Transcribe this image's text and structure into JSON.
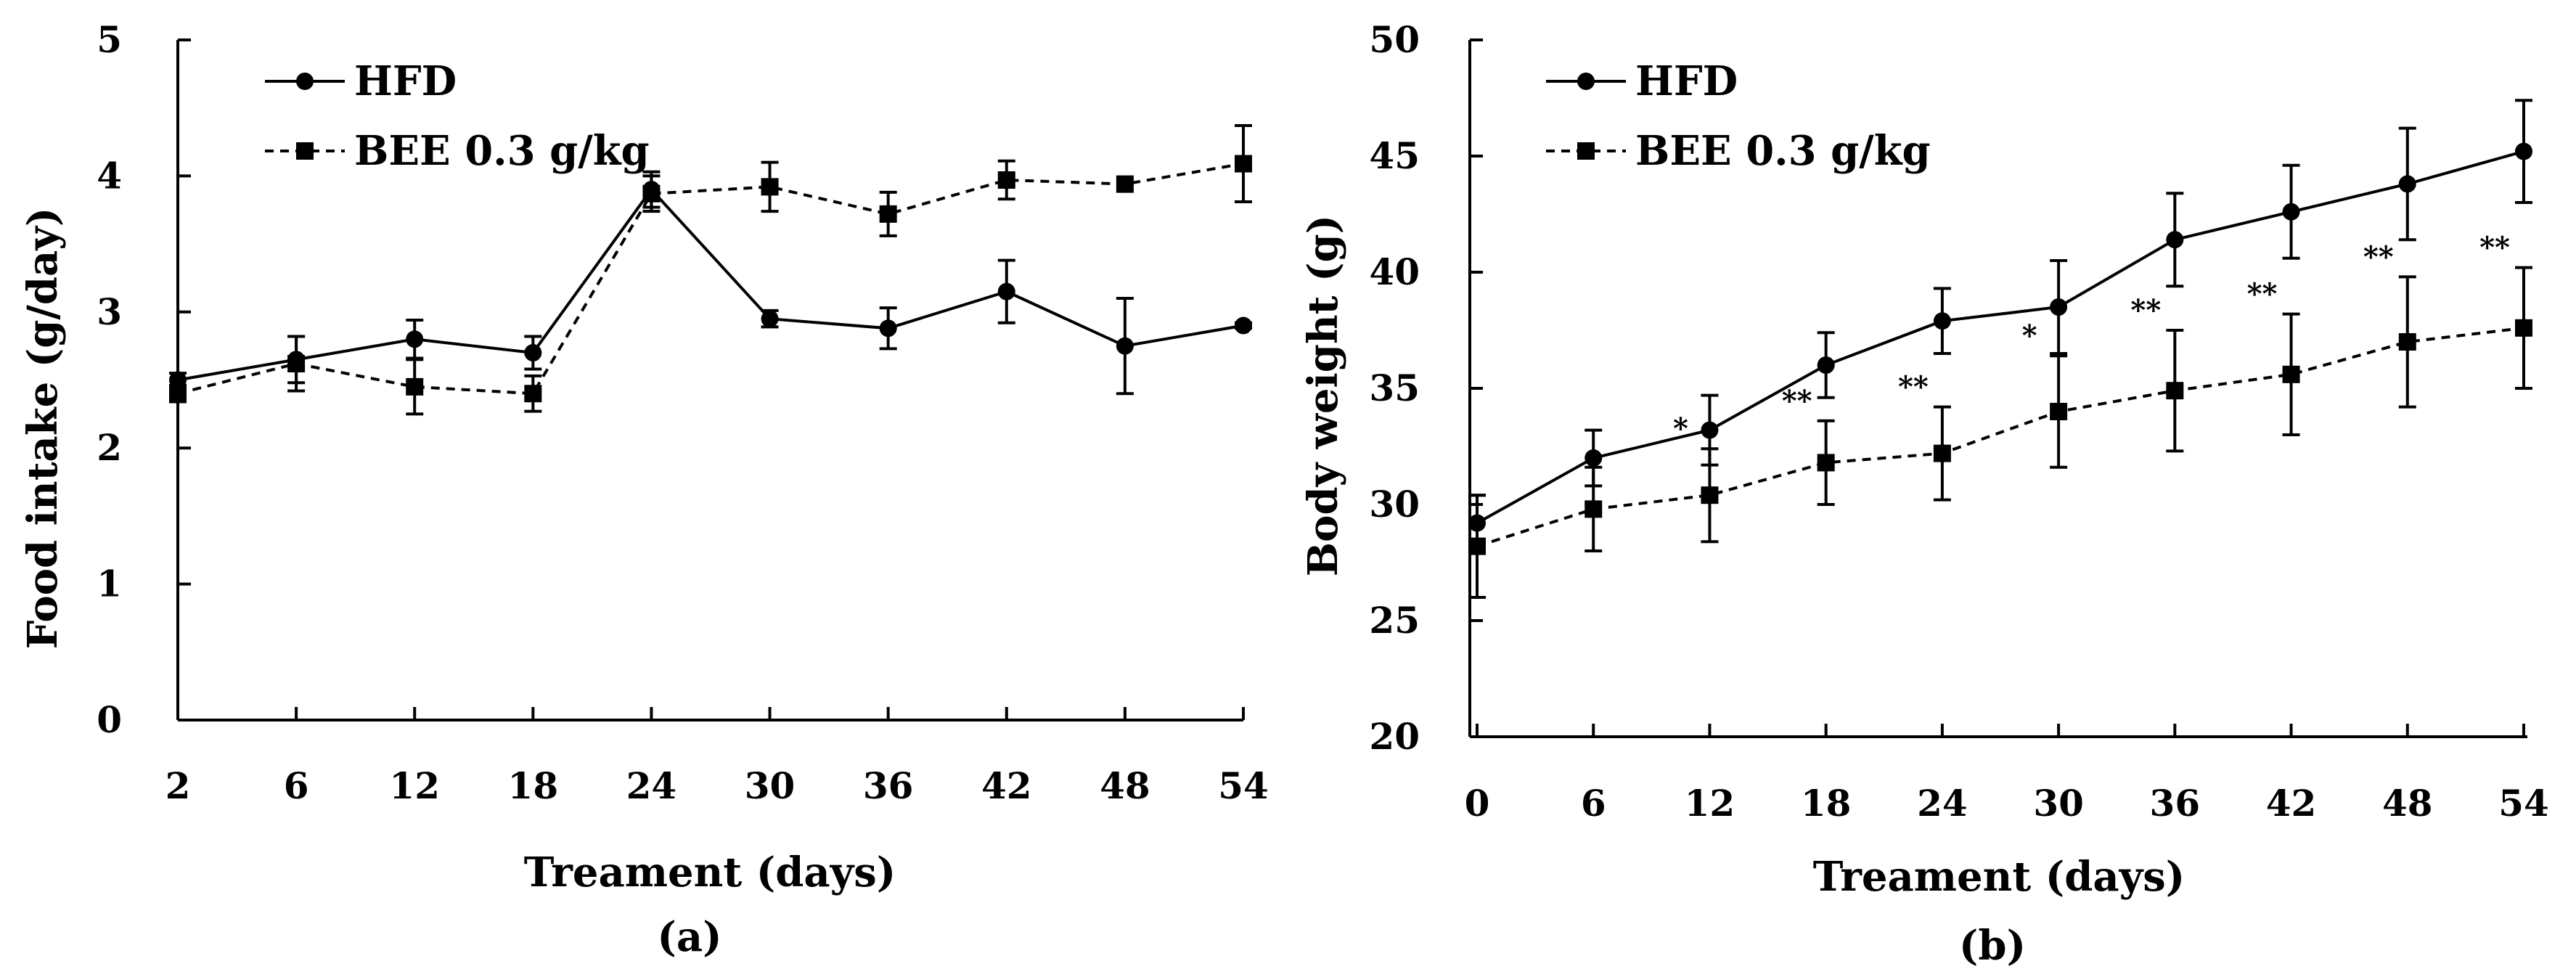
{
  "colors": {
    "ink": "#000000",
    "background": "#ffffff"
  },
  "chart_data": [
    {
      "type": "line",
      "panel_label": "(a)",
      "xlabel": "Treament (days)",
      "ylabel": "Food intake (g/day)",
      "x": [
        2,
        6,
        12,
        18,
        24,
        30,
        36,
        42,
        48,
        54
      ],
      "x_ticks": [
        "2",
        "6",
        "12",
        "18",
        "24",
        "30",
        "36",
        "42",
        "48",
        "54"
      ],
      "x_scale": "categorical",
      "ylim": [
        0,
        5
      ],
      "y_ticks": [
        "0",
        "1",
        "2",
        "3",
        "4",
        "5"
      ],
      "legend": "top-left",
      "series": [
        {
          "name": "HFD",
          "marker": "circle",
          "line": "solid",
          "values": [
            2.5,
            2.65,
            2.8,
            2.7,
            3.9,
            2.95,
            2.88,
            3.15,
            2.75,
            2.9
          ],
          "errors": [
            0.05,
            0.17,
            0.14,
            0.12,
            0.13,
            0.06,
            0.15,
            0.23,
            0.35,
            0.02
          ]
        },
        {
          "name": "BEE 0.3 g/kg",
          "marker": "square",
          "line": "dashed",
          "values": [
            2.4,
            2.62,
            2.45,
            2.4,
            3.87,
            3.92,
            3.72,
            3.97,
            3.94,
            4.09
          ],
          "errors": [
            0.06,
            0.2,
            0.2,
            0.13,
            0.13,
            0.18,
            0.16,
            0.14,
            0.04,
            0.28
          ]
        }
      ],
      "annotations": []
    },
    {
      "type": "line",
      "panel_label": "(b)",
      "xlabel": "Treament (days)",
      "ylabel": "Body weight (g)",
      "x": [
        0,
        6,
        12,
        18,
        24,
        30,
        36,
        42,
        48,
        54
      ],
      "x_ticks": [
        "0",
        "6",
        "12",
        "18",
        "24",
        "30",
        "36",
        "42",
        "48",
        "54"
      ],
      "x_scale": "categorical",
      "ylim": [
        20,
        50
      ],
      "y_ticks": [
        "20",
        "25",
        "30",
        "35",
        "40",
        "45",
        "50"
      ],
      "legend": "top-left",
      "series": [
        {
          "name": "HFD",
          "marker": "circle",
          "line": "solid",
          "values": [
            29.2,
            32.0,
            33.2,
            36.0,
            37.9,
            38.5,
            41.4,
            42.6,
            43.8,
            45.2
          ],
          "errors": [
            1.2,
            1.2,
            1.5,
            1.4,
            1.4,
            2.0,
            2.0,
            2.0,
            2.4,
            2.2
          ]
        },
        {
          "name": "BEE 0.3 g/kg",
          "marker": "square",
          "line": "dashed",
          "values": [
            28.2,
            29.8,
            30.4,
            31.8,
            32.2,
            34.0,
            34.9,
            35.6,
            37.0,
            37.6
          ],
          "errors": [
            2.2,
            1.8,
            2.0,
            1.8,
            2.0,
            2.4,
            2.6,
            2.6,
            2.8,
            2.6
          ]
        }
      ],
      "annotations": [
        {
          "x": 12,
          "text": "*"
        },
        {
          "x": 18,
          "text": "**"
        },
        {
          "x": 24,
          "text": "**"
        },
        {
          "x": 30,
          "text": "*"
        },
        {
          "x": 36,
          "text": "**"
        },
        {
          "x": 42,
          "text": "**"
        },
        {
          "x": 48,
          "text": "**"
        },
        {
          "x": 54,
          "text": "**"
        }
      ]
    }
  ]
}
